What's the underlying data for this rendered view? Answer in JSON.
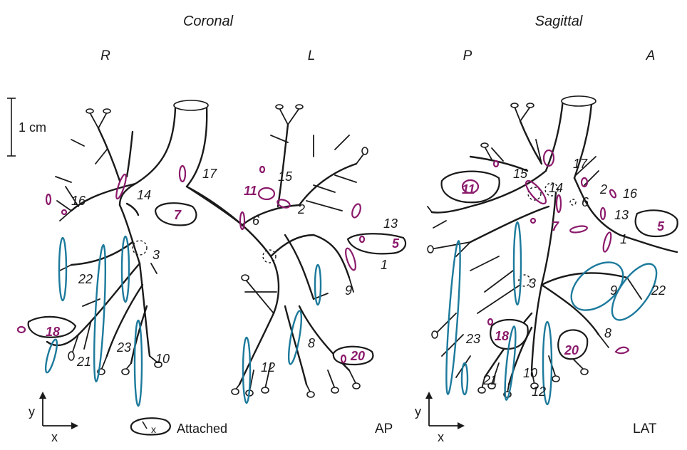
{
  "views": {
    "coronal": {
      "title": "Coronal",
      "left_dir": "R",
      "right_dir": "L",
      "corner": "AP",
      "labels": {
        "l1": "1",
        "l2": "2",
        "l3": "3",
        "l5": "5",
        "l6": "6",
        "l7": "7",
        "l8": "8",
        "l9": "9",
        "l10": "10",
        "l11": "11",
        "l12": "12",
        "l13": "13",
        "l14": "14",
        "l15": "15",
        "l16": "16",
        "l17": "17",
        "l18": "18",
        "l20": "20",
        "l21": "21",
        "l22": "22",
        "l23": "23"
      }
    },
    "sagittal": {
      "title": "Sagittal",
      "left_dir": "P",
      "right_dir": "A",
      "corner": "LAT",
      "labels": {
        "l1": "1",
        "l2": "2",
        "l3": "3",
        "l5": "5",
        "l6": "6",
        "l7": "7",
        "l8": "8",
        "l9": "9",
        "l10": "10",
        "l11": "11",
        "l12": "12",
        "l13": "13",
        "l14": "14",
        "l15": "15",
        "l16": "16",
        "l17": "17",
        "l18": "18",
        "l20": "20",
        "l21": "21",
        "l22": "22",
        "l23": "23"
      }
    }
  },
  "scale_bar": {
    "label": "1 cm"
  },
  "axes": {
    "x_label": "x",
    "y_label": "y"
  },
  "legend": {
    "marker": "x",
    "text": "Attached"
  },
  "colors": {
    "magenta": "#8b1a6b",
    "blue": "#1c7a9c",
    "ink": "#1a1a1a"
  }
}
